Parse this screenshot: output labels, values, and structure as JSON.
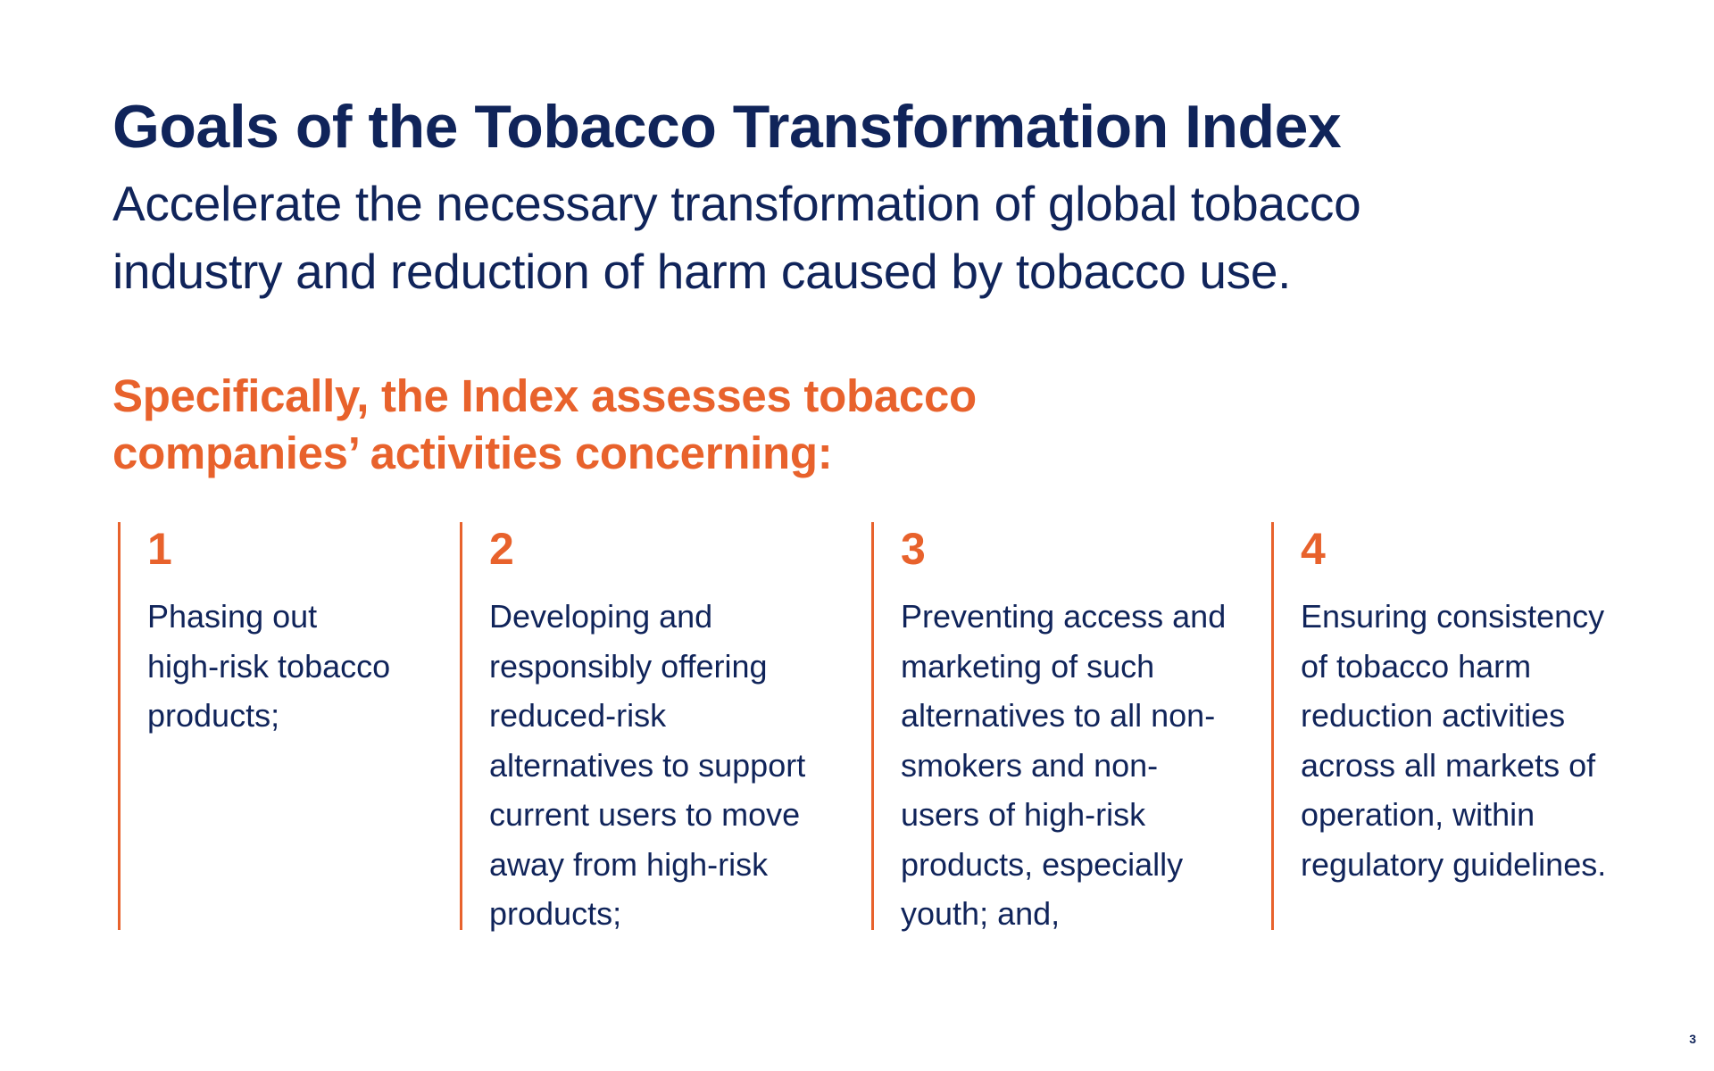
{
  "slide": {
    "title": "Goals of the Tobacco Transformation Index",
    "subtitle": "Accelerate the necessary transformation of global tobacco industry and reduction of harm caused by tobacco use.",
    "intro": "Specifically, the Index assesses tobacco companies’ activities concerning:",
    "page_number": "3"
  },
  "goals": [
    {
      "number": "1",
      "text": "Phasing out\nhigh-risk tobacco\nproducts;"
    },
    {
      "number": "2",
      "text": "Developing and\nresponsibly offering\nreduced-risk\nalternatives to support\ncurrent users to move\naway from high-risk\nproducts;"
    },
    {
      "number": "3",
      "text": "Preventing access and\nmarketing of such\nalternatives to all non-\nsmokers and non-\nusers of high-risk\nproducts, especially\nyouth; and,"
    },
    {
      "number": "4",
      "text": "Ensuring consistency\nof tobacco harm\nreduction activities\nacross all markets of\noperation, within\nregulatory guidelines."
    }
  ],
  "colors": {
    "navy": "#10245a",
    "orange": "#e8622c"
  }
}
